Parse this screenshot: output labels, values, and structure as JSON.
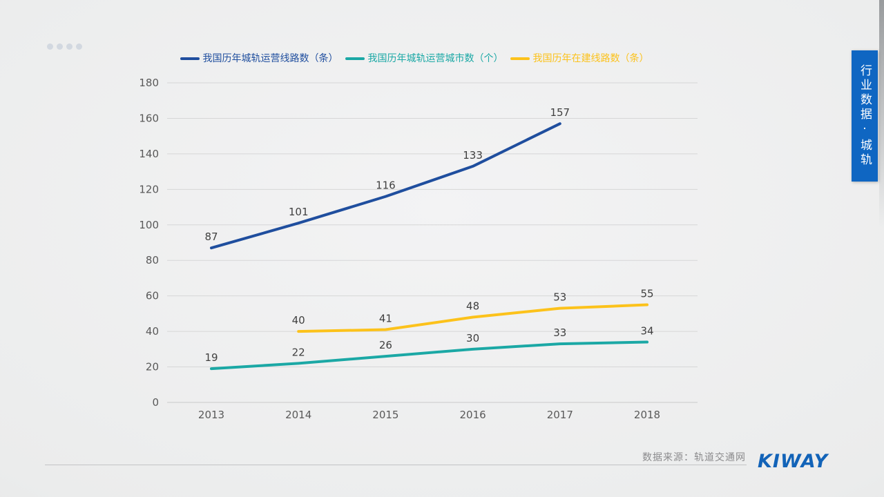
{
  "decor": {
    "dots_count": 4
  },
  "chart_data": {
    "type": "line",
    "title": "",
    "categories": [
      "2013",
      "2014",
      "2015",
      "2016",
      "2017",
      "2018"
    ],
    "series": [
      {
        "name": "我国历年城轨运营线路数（条）",
        "color": "#1f4e9e",
        "values": [
          87,
          101,
          116,
          133,
          157,
          null
        ]
      },
      {
        "name": "我国历年城轨运营城市数（个）",
        "color": "#1ba8a5",
        "values": [
          19,
          22,
          26,
          30,
          33,
          34
        ]
      },
      {
        "name": "我国历年在建线路数（条）",
        "color": "#fcc21b",
        "values": [
          null,
          40,
          41,
          48,
          53,
          55
        ]
      }
    ],
    "ylim": [
      0,
      180
    ],
    "yticks": [
      0,
      20,
      40,
      60,
      80,
      100,
      120,
      140,
      160,
      180
    ],
    "grid": true,
    "legend_position": "top",
    "data_labels": true,
    "colors": {
      "gridline": "#d6d6d7",
      "axis_line": "#c9c9ca",
      "tick_text": "#595959",
      "data_label_text": "#3f3f3f"
    }
  },
  "footer": {
    "source": "数据来源：轨道交通网",
    "logo": "KIWAY",
    "logo_color": "#1263b8"
  },
  "side_tab": {
    "label": "行业数据·城轨",
    "color": "#0f66c2"
  }
}
